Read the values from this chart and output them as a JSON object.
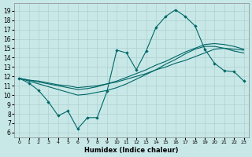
{
  "title": "",
  "xlabel": "Humidex (Indice chaleur)",
  "ylabel": "",
  "bg_color": "#c8e8e8",
  "grid_color": "#b0d0d0",
  "line_color": "#006666",
  "x_ticks": [
    0,
    1,
    2,
    3,
    4,
    5,
    6,
    7,
    8,
    9,
    10,
    11,
    12,
    13,
    14,
    15,
    16,
    17,
    18,
    19,
    20,
    21,
    22,
    23
  ],
  "y_ticks": [
    6,
    7,
    8,
    9,
    10,
    11,
    12,
    13,
    14,
    15,
    16,
    17,
    18,
    19
  ],
  "ylim": [
    5.5,
    19.8
  ],
  "xlim": [
    -0.5,
    23.5
  ],
  "jagged_x": [
    0,
    1,
    2,
    3,
    4,
    5,
    6,
    7,
    8,
    9,
    10,
    11,
    12,
    13,
    14,
    15,
    16,
    17,
    18,
    19,
    20,
    21,
    22,
    23
  ],
  "jagged_y": [
    11.8,
    11.3,
    10.5,
    9.3,
    7.8,
    8.3,
    6.4,
    7.6,
    7.6,
    10.4,
    14.8,
    14.5,
    12.7,
    14.7,
    17.2,
    18.4,
    19.1,
    18.4,
    17.4,
    14.9,
    13.4,
    12.6,
    12.5,
    11.5
  ],
  "line2_y": [
    11.8,
    11.5,
    11.2,
    10.9,
    10.6,
    10.3,
    10.0,
    10.1,
    10.3,
    10.5,
    10.8,
    11.2,
    11.7,
    12.2,
    12.7,
    13.3,
    13.8,
    14.4,
    14.9,
    15.2,
    15.2,
    15.0,
    14.7,
    14.5
  ],
  "line3_y": [
    11.8,
    11.6,
    11.4,
    11.2,
    11.0,
    10.8,
    10.6,
    10.7,
    10.9,
    11.2,
    11.5,
    11.9,
    12.3,
    12.7,
    13.2,
    13.6,
    14.1,
    14.6,
    15.0,
    15.4,
    15.5,
    15.4,
    15.2,
    14.9
  ],
  "line4_y": [
    11.8,
    11.6,
    11.5,
    11.3,
    11.1,
    11.0,
    10.8,
    10.9,
    11.0,
    11.2,
    11.4,
    11.7,
    12.0,
    12.3,
    12.7,
    13.0,
    13.4,
    13.7,
    14.1,
    14.5,
    14.9,
    15.0,
    14.9,
    14.8
  ]
}
